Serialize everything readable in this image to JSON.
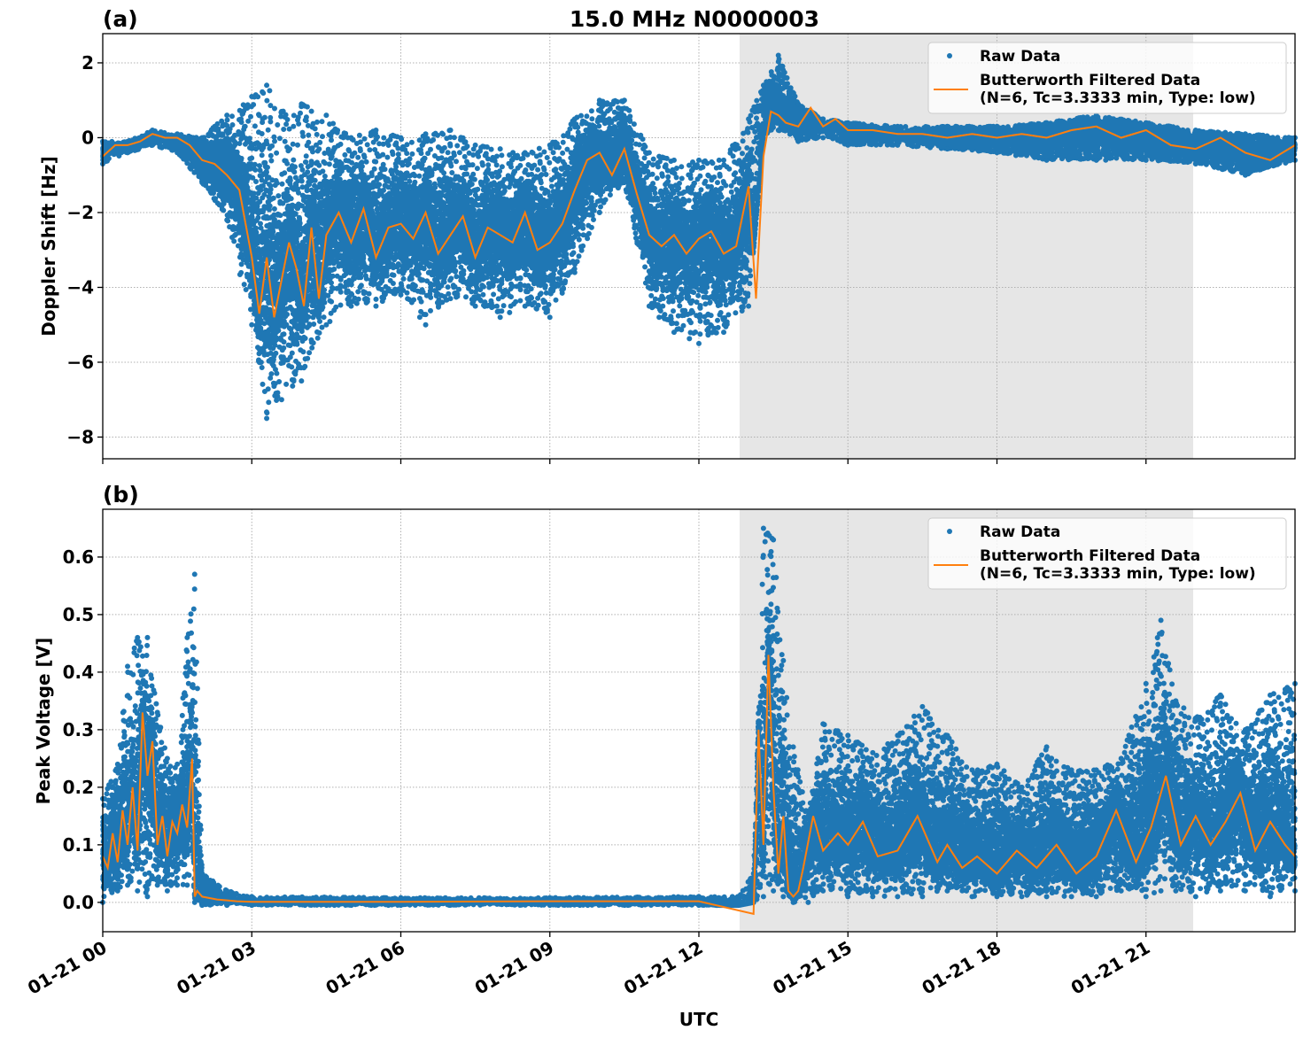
{
  "chart_data": [
    {
      "type": "scatter",
      "panel_label": "(a)",
      "title": "15.0 MHz N0000003",
      "xlabel": "",
      "ylabel": "Doppler Shift [Hz]",
      "xlim_hours": [
        0,
        24
      ],
      "ylim": [
        -8.58,
        2.78
      ],
      "yticks": [
        2,
        0,
        -2,
        -4,
        -6,
        -8
      ],
      "ytick_labels": [
        "2",
        "0",
        "−2",
        "−4",
        "−6",
        "−8"
      ],
      "grid": true,
      "legend_position": "top-right",
      "shaded_span_hours": [
        12.82,
        21.95
      ],
      "series": [
        {
          "name": "Raw Data",
          "kind": "scatter",
          "color": "#1f77b4",
          "x_hours": [
            0,
            0.5,
            1,
            1.5,
            2,
            2.5,
            3,
            3.3,
            3.6,
            4,
            4.5,
            5,
            5.5,
            6,
            6.5,
            7,
            7.5,
            8,
            8.5,
            9,
            9.5,
            10,
            10.5,
            11,
            11.2,
            11.5,
            12,
            12.5,
            13,
            13.3,
            13.6,
            14,
            14.5,
            15,
            16,
            17,
            18,
            19,
            20,
            21,
            22,
            23,
            24
          ],
          "y_low": [
            -0.7,
            -0.4,
            -0.2,
            -0.4,
            -1.2,
            -2.2,
            -5.0,
            -7.5,
            -7.0,
            -6.5,
            -5.0,
            -4.5,
            -4.5,
            -4.2,
            -5.0,
            -4.3,
            -4.5,
            -4.8,
            -4.5,
            -4.8,
            -3.6,
            -2.0,
            -1.2,
            -4.5,
            -4.8,
            -5.2,
            -5.5,
            -5.2,
            -4.5,
            0.1,
            0.2,
            -0.1,
            0.0,
            -0.2,
            -0.2,
            -0.3,
            -0.4,
            -0.6,
            -0.6,
            -0.6,
            -0.7,
            -1.0,
            -0.6
          ],
          "y_high": [
            -0.1,
            -0.1,
            0.2,
            0.1,
            0.0,
            0.6,
            1.1,
            1.4,
            0.7,
            0.9,
            0.6,
            0.0,
            0.2,
            0.0,
            0.1,
            0.2,
            -0.2,
            -0.3,
            -0.4,
            -0.2,
            0.5,
            1.0,
            1.0,
            -0.4,
            -0.5,
            -0.6,
            -0.6,
            -0.6,
            0.5,
            1.4,
            2.2,
            0.9,
            0.5,
            0.4,
            0.3,
            0.3,
            0.3,
            0.4,
            0.6,
            0.4,
            0.2,
            0.1,
            0.0
          ]
        },
        {
          "name": "Butterworth Filtered Data\n(N=6, Tc=3.3333 min, Type: low)",
          "kind": "line",
          "color": "#ff7f0e",
          "x_hours": [
            0,
            0.25,
            0.5,
            0.75,
            1,
            1.25,
            1.5,
            1.75,
            2,
            2.25,
            2.5,
            2.75,
            3,
            3.15,
            3.3,
            3.45,
            3.6,
            3.75,
            3.9,
            4.05,
            4.2,
            4.35,
            4.5,
            4.75,
            5,
            5.25,
            5.5,
            5.75,
            6,
            6.25,
            6.5,
            6.75,
            7,
            7.25,
            7.5,
            7.75,
            8,
            8.25,
            8.5,
            8.75,
            9,
            9.25,
            9.5,
            9.75,
            10,
            10.25,
            10.5,
            10.75,
            11,
            11.25,
            11.5,
            11.75,
            12,
            12.25,
            12.5,
            12.75,
            13,
            13.15,
            13.3,
            13.45,
            13.6,
            13.75,
            14,
            14.25,
            14.5,
            14.75,
            15,
            15.5,
            16,
            16.5,
            17,
            17.5,
            18,
            18.5,
            19,
            19.5,
            20,
            20.5,
            21,
            21.5,
            22,
            22.5,
            23,
            23.5,
            24
          ],
          "y": [
            -0.5,
            -0.2,
            -0.2,
            -0.1,
            0.1,
            0.0,
            0.0,
            -0.2,
            -0.6,
            -0.7,
            -1.0,
            -1.4,
            -3.2,
            -4.7,
            -3.2,
            -4.8,
            -3.8,
            -2.8,
            -3.5,
            -4.5,
            -2.4,
            -4.3,
            -2.6,
            -2.0,
            -2.8,
            -1.9,
            -3.2,
            -2.4,
            -2.3,
            -2.7,
            -2.0,
            -3.1,
            -2.6,
            -2.1,
            -3.2,
            -2.4,
            -2.6,
            -2.8,
            -2.0,
            -3.0,
            -2.8,
            -2.3,
            -1.4,
            -0.6,
            -0.4,
            -1.0,
            -0.3,
            -1.5,
            -2.6,
            -2.9,
            -2.6,
            -3.1,
            -2.7,
            -2.5,
            -3.1,
            -2.9,
            -1.3,
            -4.3,
            -0.5,
            0.7,
            0.6,
            0.4,
            0.3,
            0.8,
            0.3,
            0.5,
            0.2,
            0.2,
            0.1,
            0.1,
            0.0,
            0.1,
            0.0,
            0.1,
            0.0,
            0.2,
            0.3,
            0.0,
            0.2,
            -0.2,
            -0.3,
            0.0,
            -0.4,
            -0.6,
            -0.2
          ]
        }
      ],
      "legend": [
        "Raw Data",
        "Butterworth Filtered Data",
        "(N=6, Tc=3.3333 min, Type: low)"
      ]
    },
    {
      "type": "scatter",
      "panel_label": "(b)",
      "title": "",
      "xlabel": "UTC",
      "ylabel": "Peak Voltage [V]",
      "xlim_hours": [
        0,
        24
      ],
      "ylim": [
        -0.051,
        0.683
      ],
      "yticks": [
        0.6,
        0.5,
        0.4,
        0.3,
        0.2,
        0.1,
        0.0
      ],
      "ytick_labels": [
        "0.6",
        "0.5",
        "0.4",
        "0.3",
        "0.2",
        "0.1",
        "0.0"
      ],
      "xticks_hours": [
        0,
        3,
        6,
        9,
        12,
        15,
        18,
        21
      ],
      "xtick_labels": [
        "01-21 00",
        "01-21 03",
        "01-21 06",
        "01-21 09",
        "01-21 12",
        "01-21 15",
        "01-21 18",
        "01-21 21"
      ],
      "grid": true,
      "legend_position": "top-right",
      "shaded_span_hours": [
        12.82,
        21.95
      ],
      "series": [
        {
          "name": "Raw Data",
          "kind": "scatter",
          "color": "#1f77b4",
          "x_hours": [
            0,
            0.3,
            0.5,
            0.7,
            0.9,
            1.1,
            1.3,
            1.5,
            1.7,
            1.85,
            2.0,
            2.5,
            3,
            6,
            9,
            12,
            12.8,
            13.1,
            13.3,
            13.5,
            13.7,
            13.9,
            14.2,
            14.5,
            15,
            15.5,
            16,
            16.5,
            17,
            17.5,
            18,
            18.5,
            19,
            19.5,
            20,
            20.5,
            21,
            21.3,
            21.6,
            22,
            22.5,
            23,
            23.5,
            24
          ],
          "y_low": [
            0.0,
            0.02,
            0.03,
            0.02,
            0.01,
            0.03,
            0.02,
            0.03,
            0.03,
            0.0,
            -0.005,
            -0.005,
            -0.005,
            -0.005,
            -0.005,
            -0.005,
            -0.005,
            0.0,
            0.01,
            0.02,
            0.01,
            0.0,
            0.0,
            0.02,
            0.01,
            0.01,
            0.01,
            0.01,
            0.02,
            0.01,
            0.01,
            0.01,
            0.01,
            0.01,
            0.01,
            0.02,
            0.01,
            0.02,
            0.02,
            0.01,
            0.02,
            0.02,
            0.01,
            0.02
          ],
          "y_high": [
            0.18,
            0.24,
            0.41,
            0.46,
            0.46,
            0.33,
            0.25,
            0.24,
            0.46,
            0.57,
            0.05,
            0.02,
            0.01,
            0.008,
            0.008,
            0.01,
            0.01,
            0.05,
            0.65,
            0.63,
            0.42,
            0.27,
            0.15,
            0.31,
            0.29,
            0.26,
            0.29,
            0.34,
            0.29,
            0.23,
            0.24,
            0.2,
            0.27,
            0.23,
            0.23,
            0.25,
            0.38,
            0.49,
            0.35,
            0.32,
            0.36,
            0.3,
            0.36,
            0.38
          ]
        },
        {
          "name": "Butterworth Filtered Data\n(N=6, Tc=3.3333 min, Type: low)",
          "kind": "line",
          "color": "#ff7f0e",
          "x_hours": [
            0,
            0.1,
            0.2,
            0.3,
            0.4,
            0.5,
            0.6,
            0.7,
            0.8,
            0.9,
            1.0,
            1.1,
            1.2,
            1.3,
            1.4,
            1.5,
            1.6,
            1.7,
            1.8,
            1.85,
            1.9,
            2.0,
            2.3,
            2.7,
            3,
            6,
            9,
            12,
            13.1,
            13.2,
            13.3,
            13.4,
            13.5,
            13.6,
            13.7,
            13.8,
            13.9,
            14.0,
            14.1,
            14.3,
            14.5,
            14.8,
            15.0,
            15.3,
            15.6,
            16.0,
            16.4,
            16.8,
            17.0,
            17.3,
            17.6,
            18.0,
            18.4,
            18.8,
            19.2,
            19.6,
            20.0,
            20.4,
            20.8,
            21.1,
            21.4,
            21.7,
            22.0,
            22.3,
            22.6,
            22.9,
            23.2,
            23.5,
            23.8,
            24
          ],
          "y": [
            0.08,
            0.06,
            0.12,
            0.07,
            0.16,
            0.1,
            0.2,
            0.09,
            0.33,
            0.22,
            0.28,
            0.1,
            0.15,
            0.08,
            0.14,
            0.12,
            0.17,
            0.13,
            0.25,
            0.01,
            0.02,
            0.01,
            0.005,
            0.002,
            0.001,
            0.001,
            0.002,
            0.002,
            -0.02,
            0.3,
            0.1,
            0.43,
            0.2,
            0.05,
            0.15,
            0.02,
            0.01,
            0.02,
            0.06,
            0.15,
            0.09,
            0.12,
            0.1,
            0.14,
            0.08,
            0.09,
            0.15,
            0.07,
            0.1,
            0.06,
            0.08,
            0.05,
            0.09,
            0.06,
            0.1,
            0.05,
            0.08,
            0.16,
            0.07,
            0.13,
            0.22,
            0.1,
            0.15,
            0.1,
            0.14,
            0.19,
            0.09,
            0.14,
            0.1,
            0.08
          ]
        }
      ],
      "legend": [
        "Raw Data",
        "Butterworth Filtered Data",
        "(N=6, Tc=3.3333 min, Type: low)"
      ]
    }
  ]
}
